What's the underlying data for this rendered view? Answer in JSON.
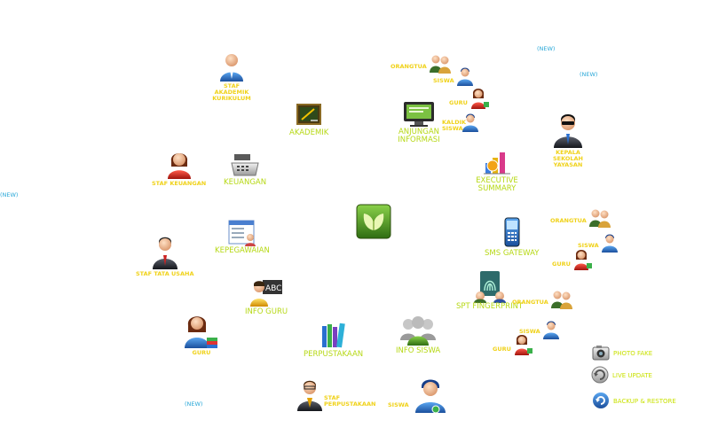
{
  "new_tag": "(NEW)",
  "center": {
    "icon": "leaf-logo-icon"
  },
  "modules": {
    "akademik": "AKADEMIK",
    "anjungan": "ANJUNGAN INFORMASI",
    "executive": "EXECUTIVE SUMMARY",
    "keuangan": "KEUANGAN",
    "kepegawaian": "KEPEGAWAIAN",
    "sms": "SMS GATEWAY",
    "info_guru": "INFO GURU",
    "fingerprint": "SPT FINGERPRINT",
    "perpustakaan": "PERPUSTAKAAN",
    "info_siswa": "INFO SISWA",
    "photo": "PHOTO FAKE",
    "live_update": "LIVE UPDATE",
    "backup": "BACKUP & RESTORE"
  },
  "roles": {
    "staf_akademik": "STAF AKADEMIK KURIKULUM",
    "staf_keuangan": "STAF KEUANGAN",
    "staf_tata_usaha": "STAF TATA USAHA",
    "guru_left": "GURU",
    "staf_perpustakaan": "STAF PERPUSTAKAAN",
    "siswa_bottom": "SISWA",
    "kepala_sekolah": "KEPALA SEKOLAH YAYASAN",
    "orangtua_1": "ORANGTUA",
    "siswa_1": "SISWA",
    "guru_1": "GURU",
    "kaldik_siswa": "KALDIK SISWA",
    "orangtua_2": "ORANGTUA",
    "siswa_2": "SISWA",
    "guru_2": "GURU",
    "orangtua_3": "ORANGTUA",
    "siswa_3": "SISWA",
    "guru_3": "GURU"
  },
  "colors": {
    "label_green": "#c9e100",
    "label_yellow": "#f0d21a",
    "new_blue": "#2aa8d8"
  }
}
